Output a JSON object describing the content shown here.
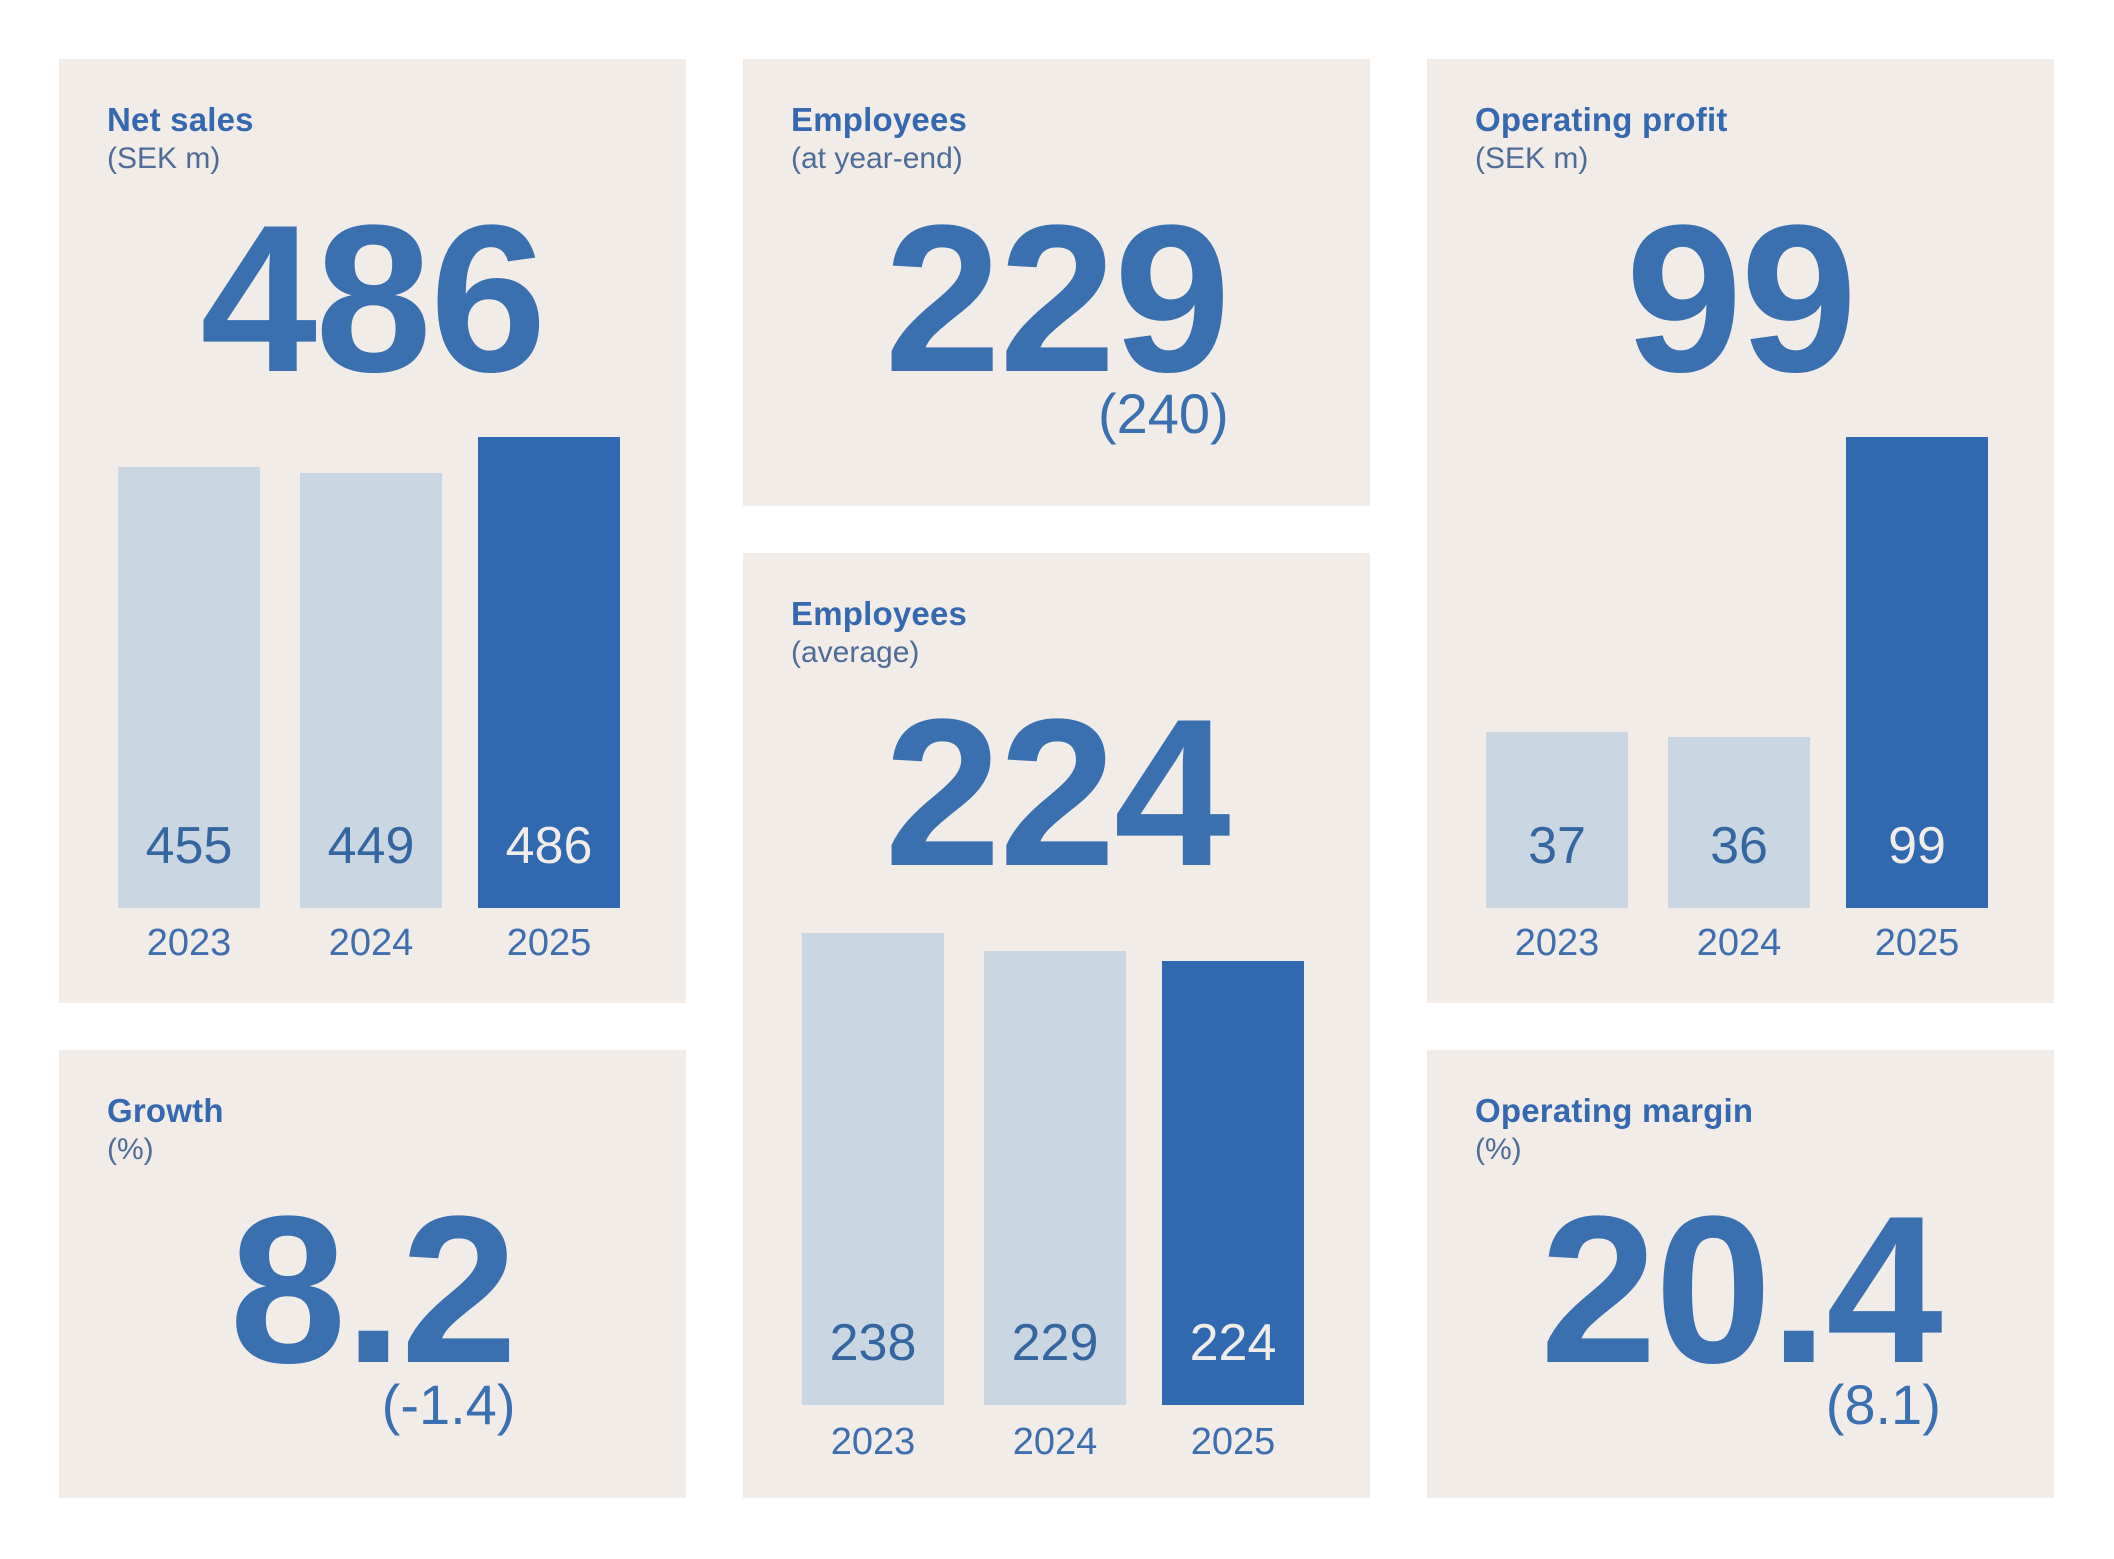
{
  "colors": {
    "page_background": "#ffffff",
    "card_background": "#F1ECE8",
    "accent_blue": "#3A6FB0",
    "title_blue": "#3568AE",
    "subtitle_gray_blue": "#4E6C95",
    "bar_light": "#CAD7E3",
    "bar_dark": "#3069B0",
    "bar_value_on_light": "#35669F",
    "bar_value_on_dark": "#F1ECE8",
    "year_label": "#3F6EAE"
  },
  "cards": [
    {
      "id": "net_sales",
      "title": "Net sales",
      "subtitle": "(SEK m)",
      "headline": "486",
      "chart": {
        "categories": [
          "2023",
          "2024",
          "2025"
        ],
        "values": [
          455,
          449,
          486
        ],
        "labels": [
          "455",
          "449",
          "486"
        ],
        "highlight_index": 2
      }
    },
    {
      "id": "employees_year_end",
      "title": "Employees",
      "subtitle": "(at year-end)",
      "headline": "229",
      "sub_value": "(240)"
    },
    {
      "id": "operating_profit",
      "title": "Operating profit",
      "subtitle": "(SEK m)",
      "headline": "99",
      "chart": {
        "categories": [
          "2023",
          "2024",
          "2025"
        ],
        "values": [
          37,
          36,
          99
        ],
        "labels": [
          "37",
          "36",
          "99"
        ],
        "highlight_index": 2
      }
    },
    {
      "id": "growth",
      "title": "Growth",
      "subtitle": "(%)",
      "headline": "8.2",
      "sub_value": "(-1.4)"
    },
    {
      "id": "employees_average",
      "title": "Employees",
      "subtitle": "(average)",
      "headline": "224",
      "chart": {
        "categories": [
          "2023",
          "2024",
          "2025"
        ],
        "values": [
          238,
          229,
          224
        ],
        "labels": [
          "238",
          "229",
          "224"
        ],
        "highlight_index": 2
      }
    },
    {
      "id": "operating_margin",
      "title": "Operating margin",
      "subtitle": "(%)",
      "headline": "20.4",
      "sub_value": "(8.1)"
    }
  ],
  "chart_data": [
    {
      "type": "bar",
      "title": "Net sales",
      "subtitle": "(SEK m)",
      "headline_value": 486,
      "categories": [
        "2023",
        "2024",
        "2025"
      ],
      "values": [
        455,
        449,
        486
      ],
      "highlight_category": "2025",
      "legend_position": "none",
      "grid": false,
      "value_labels_inside_bars": true
    },
    {
      "type": "bar",
      "title": "Operating profit",
      "subtitle": "(SEK m)",
      "headline_value": 99,
      "categories": [
        "2023",
        "2024",
        "2025"
      ],
      "values": [
        37,
        36,
        99
      ],
      "highlight_category": "2025",
      "legend_position": "none",
      "grid": false,
      "value_labels_inside_bars": true
    },
    {
      "type": "bar",
      "title": "Employees",
      "subtitle": "(average)",
      "headline_value": 224,
      "categories": [
        "2023",
        "2024",
        "2025"
      ],
      "values": [
        238,
        229,
        224
      ],
      "highlight_category": "2025",
      "legend_position": "none",
      "grid": false,
      "value_labels_inside_bars": true
    },
    {
      "type": "kpi",
      "title": "Employees",
      "subtitle": "(at year-end)",
      "value": 229,
      "comparison_value_in_parentheses": 240
    },
    {
      "type": "kpi",
      "title": "Growth",
      "subtitle": "(%)",
      "value": 8.2,
      "comparison_value_in_parentheses": -1.4
    },
    {
      "type": "kpi",
      "title": "Operating margin",
      "subtitle": "(%)",
      "value": 20.4,
      "comparison_value_in_parentheses": 8.1
    }
  ]
}
